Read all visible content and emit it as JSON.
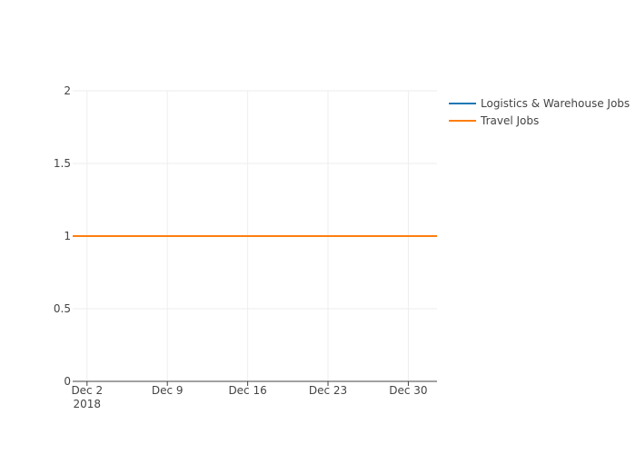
{
  "chart_data": {
    "type": "line",
    "title": "",
    "xlabel": "",
    "ylabel": "",
    "x_axis_type": "date",
    "x_ticks": [
      {
        "date": "2018-12-02",
        "label": "Dec 2",
        "sublabel": "2018"
      },
      {
        "date": "2018-12-09",
        "label": "Dec 9",
        "sublabel": ""
      },
      {
        "date": "2018-12-16",
        "label": "Dec 16",
        "sublabel": ""
      },
      {
        "date": "2018-12-23",
        "label": "Dec 23",
        "sublabel": ""
      },
      {
        "date": "2018-12-30",
        "label": "Dec 30",
        "sublabel": ""
      }
    ],
    "xlim": [
      "2018-11-30T18:00",
      "2019-01-01T12:00"
    ],
    "ylim": [
      0,
      2
    ],
    "y_ticks": [
      {
        "value": 0,
        "label": "0"
      },
      {
        "value": 0.5,
        "label": "0.5"
      },
      {
        "value": 1,
        "label": "1"
      },
      {
        "value": 1.5,
        "label": "1.5"
      },
      {
        "value": 2,
        "label": "2"
      }
    ],
    "grid": true,
    "legend_position": "top-right",
    "series": [
      {
        "name": "Logistics & Warehouse Jobs",
        "color": "#1f77b4",
        "x": [
          "2018-11-30T18:00",
          "2019-01-01T12:00"
        ],
        "y": [
          1,
          1
        ]
      },
      {
        "name": "Travel Jobs",
        "color": "#ff7f0e",
        "x": [
          "2018-11-30T18:00",
          "2019-01-01T12:00"
        ],
        "y": [
          1,
          1
        ]
      }
    ]
  }
}
